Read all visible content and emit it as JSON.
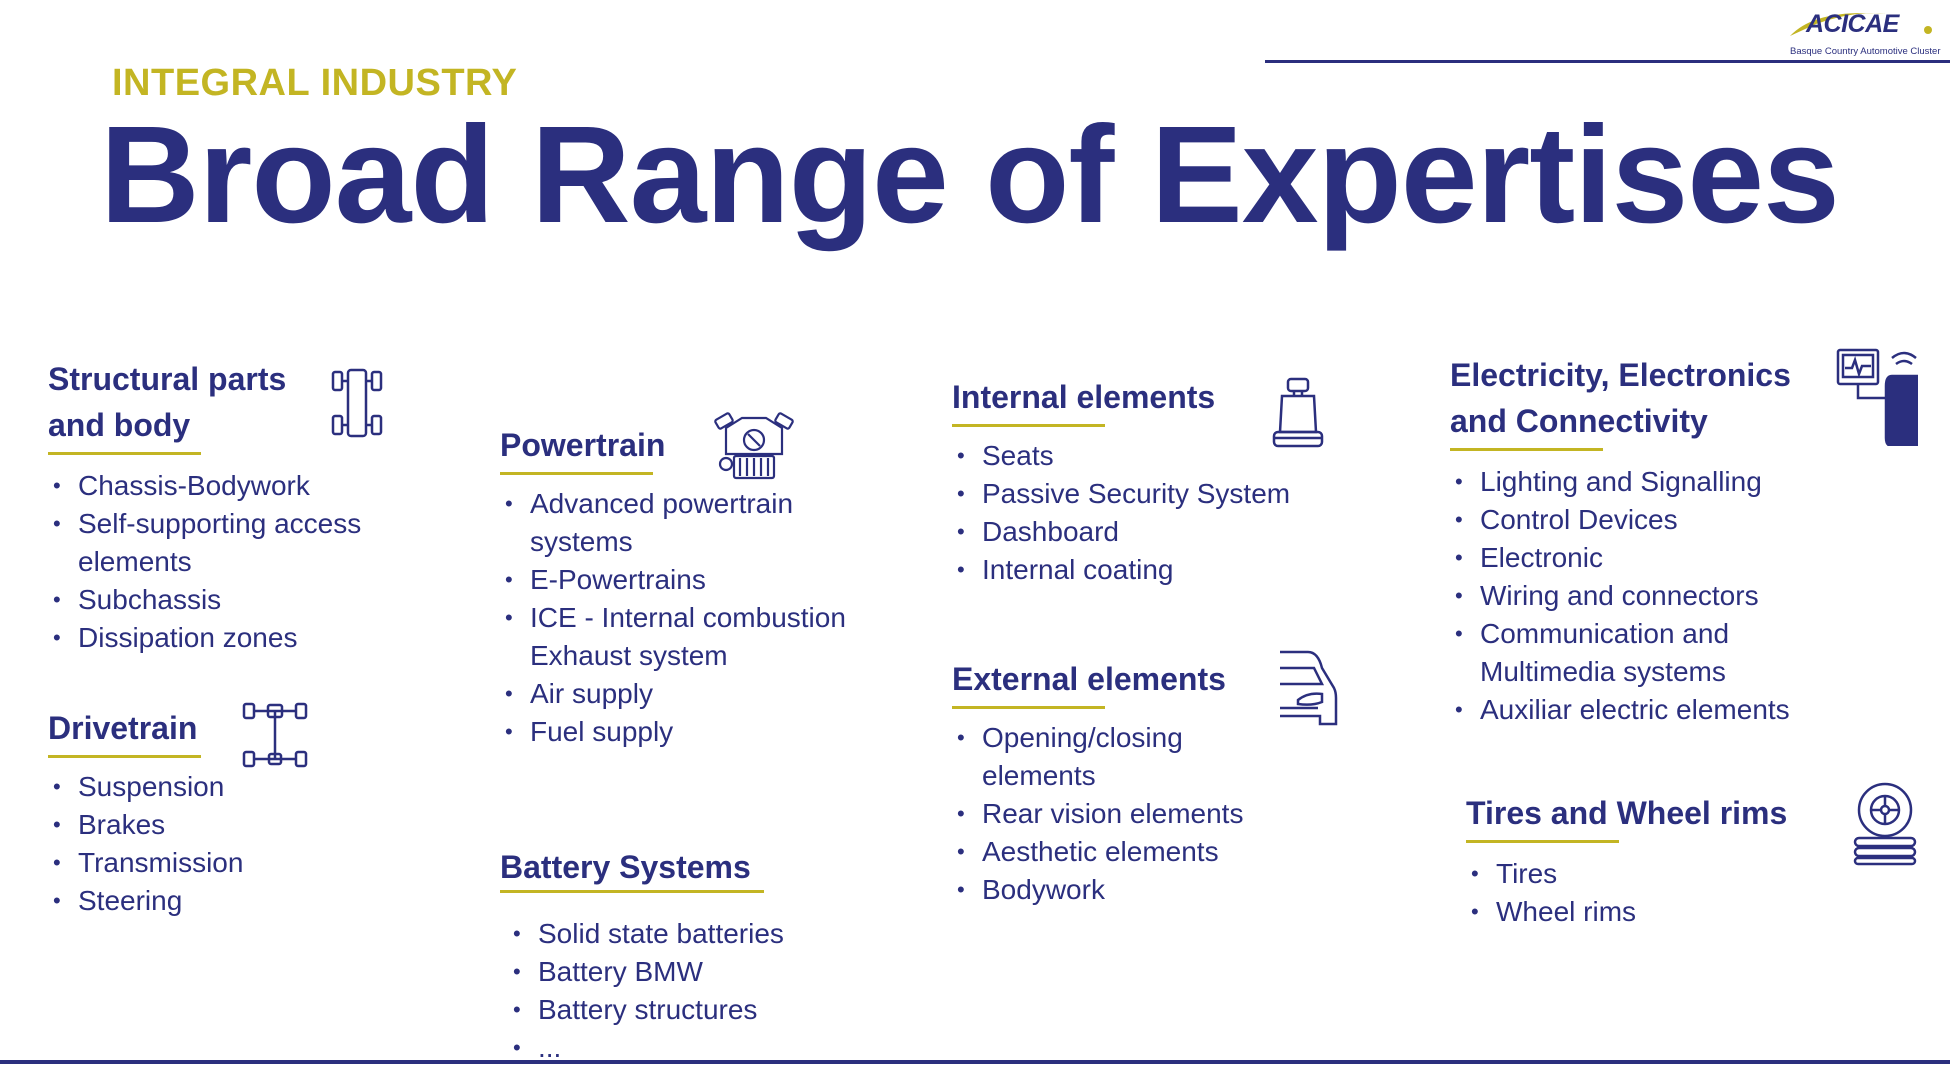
{
  "header": {
    "eyebrow": "INTEGRAL INDUSTRY",
    "title": "Broad Range of Expertises"
  },
  "logo": {
    "name": "ACICAE",
    "tagline": "Basque Country Automotive Cluster"
  },
  "colors": {
    "primary": "#2b2f7e",
    "accent": "#c3b523",
    "background": "#ffffff"
  },
  "sections": {
    "structural": {
      "title_line1": "Structural parts",
      "title_line2": "and body",
      "icon": "chassis-icon",
      "items": [
        "Chassis-Bodywork",
        "Self-supporting access",
        "elements",
        "Subchassis",
        "Dissipation zones"
      ]
    },
    "drivetrain": {
      "title": "Drivetrain",
      "icon": "drivetrain-axle-icon",
      "items": [
        "Suspension",
        "Brakes",
        "Transmission",
        "Steering"
      ]
    },
    "powertrain": {
      "title": "Powertrain",
      "icon": "engine-icon",
      "items": [
        "Advanced powertrain",
        "systems",
        "E-Powertrains",
        "ICE - Internal combustion",
        "Exhaust system",
        "Air supply",
        "Fuel supply"
      ]
    },
    "battery": {
      "title": "Battery Systems",
      "items": [
        "Solid state batteries",
        "Battery BMW",
        "Battery structures",
        "..."
      ]
    },
    "internal": {
      "title": "Internal elements",
      "icon": "car-seat-icon",
      "items": [
        "Seats",
        "Passive Security System",
        "Dashboard",
        "Internal coating"
      ]
    },
    "external": {
      "title": "External elements",
      "icon": "car-front-icon",
      "items": [
        "Opening/closing",
        "elements",
        "Rear vision elements",
        "Aesthetic elements",
        "Bodywork"
      ]
    },
    "electricity": {
      "title_line1": "Electricity, Electronics",
      "title_line2": "and Connectivity",
      "icon": "diagnostic-monitor-icon",
      "items": [
        "Lighting and Signalling",
        "Control Devices",
        "Electronic",
        "Wiring and connectors",
        "Communication and",
        "Multimedia systems",
        "Auxiliar electric elements"
      ]
    },
    "tires": {
      "title": "Tires and Wheel rims",
      "icon": "tire-stack-icon",
      "items": [
        "Tires",
        "Wheel rims"
      ]
    }
  }
}
